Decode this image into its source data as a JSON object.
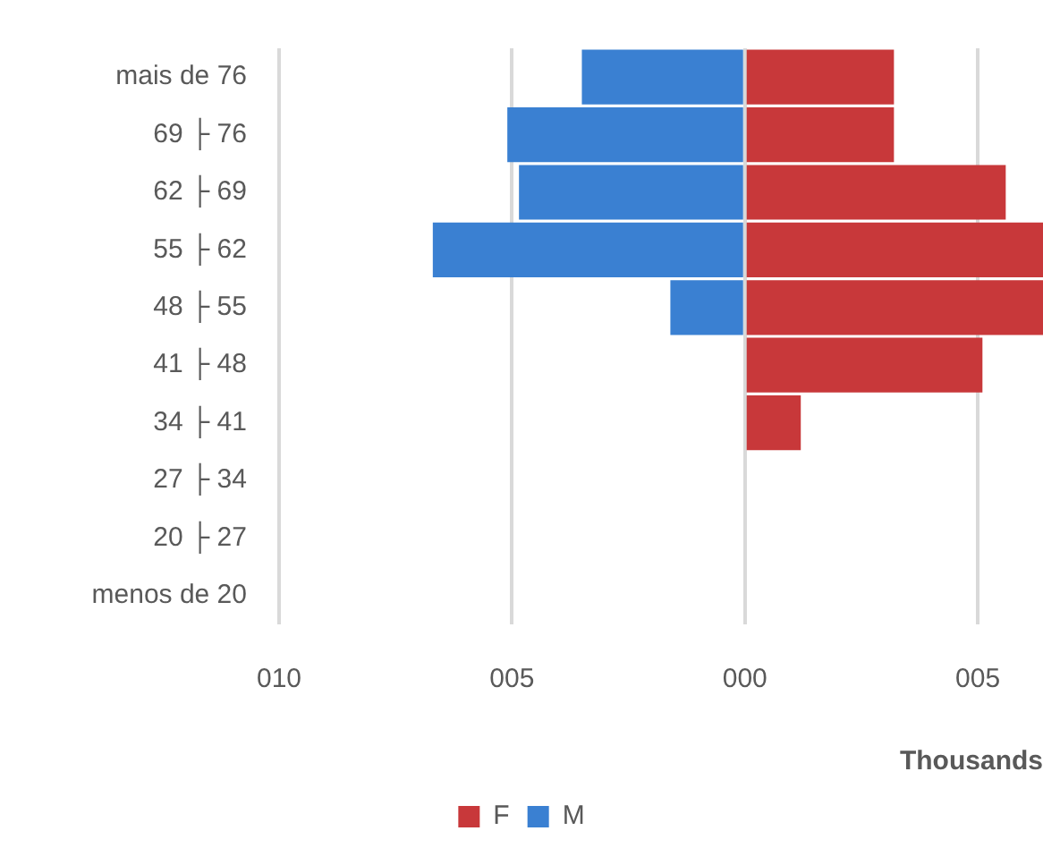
{
  "chart_data": {
    "type": "bar",
    "orientation": "horizontal",
    "stacked": true,
    "xlabel": "Thousands",
    "categories": [
      "mais de 76",
      "69 ├ 76",
      "62 ├ 69",
      "55 ├ 62",
      "48 ├ 55",
      "41 ├ 48",
      "34 ├ 41",
      "27 ├ 34",
      "20 ├ 27",
      "menos de 20"
    ],
    "series": [
      {
        "name": "F",
        "color": "#c8383a",
        "values": [
          3.2,
          3.2,
          5.6,
          6.4,
          6.4,
          5.1,
          1.2,
          0,
          0,
          0
        ]
      },
      {
        "name": "M",
        "color": "#3a80d2",
        "values": [
          -3.5,
          -5.1,
          -4.85,
          -6.7,
          -1.6,
          0,
          0,
          0,
          0,
          0
        ]
      }
    ],
    "xlim": [
      -10,
      6.4
    ],
    "xticks": [
      {
        "value": -10,
        "label": "010"
      },
      {
        "value": -5,
        "label": "005"
      },
      {
        "value": 0,
        "label": "000"
      },
      {
        "value": 5,
        "label": "005"
      }
    ],
    "grid": "x",
    "legend": "bottom"
  }
}
